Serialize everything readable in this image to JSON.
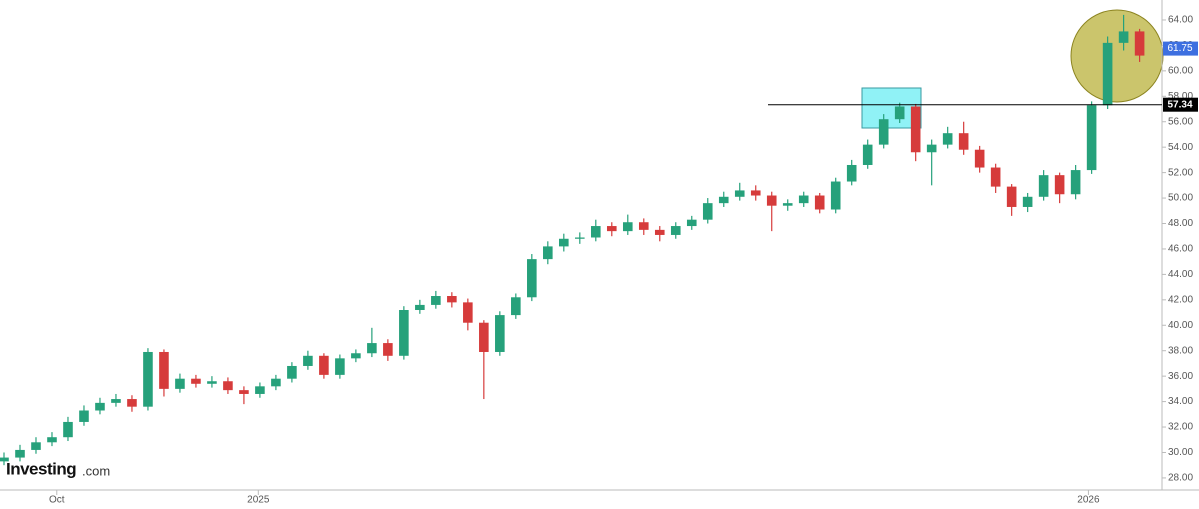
{
  "chart_data": {
    "type": "candlestick",
    "logo": {
      "brand": "Investing",
      "suffix": ".com"
    },
    "x": [
      0,
      1,
      2,
      3,
      4,
      5,
      6,
      7,
      8,
      9,
      10,
      11,
      12,
      13,
      14,
      15,
      16,
      17,
      18,
      19,
      20,
      21,
      22,
      23,
      24,
      25,
      26,
      27,
      28,
      29,
      30,
      31,
      32,
      33,
      34,
      35,
      36,
      37,
      38,
      39,
      40,
      41,
      42,
      43,
      44,
      45,
      46,
      47,
      48,
      49,
      50,
      51,
      52,
      53,
      54,
      55,
      56,
      57,
      58,
      59,
      60,
      61,
      62,
      63,
      64,
      65,
      66,
      67,
      68,
      69,
      70,
      71
    ],
    "open": [
      29.3,
      29.6,
      30.2,
      30.8,
      31.2,
      32.4,
      33.3,
      33.9,
      34.2,
      33.6,
      37.9,
      35.0,
      35.8,
      35.4,
      35.6,
      34.9,
      34.6,
      35.2,
      35.8,
      36.8,
      37.6,
      36.1,
      37.4,
      37.8,
      38.6,
      37.6,
      41.2,
      41.6,
      42.3,
      41.8,
      40.2,
      37.9,
      40.8,
      42.2,
      45.2,
      46.2,
      46.8,
      46.9,
      47.8,
      47.4,
      48.1,
      47.5,
      47.1,
      47.8,
      48.3,
      49.6,
      50.1,
      50.6,
      50.2,
      49.4,
      49.6,
      50.2,
      49.1,
      51.3,
      52.6,
      54.2,
      56.2,
      57.2,
      53.6,
      54.2,
      55.1,
      53.8,
      52.4,
      50.9,
      49.3,
      50.1,
      51.8,
      50.3,
      52.2,
      57.3,
      62.2,
      63.1
    ],
    "high": [
      30.0,
      30.6,
      31.2,
      31.6,
      32.8,
      33.7,
      34.3,
      34.6,
      34.5,
      38.2,
      38.1,
      36.2,
      36.1,
      36.0,
      35.9,
      35.2,
      35.5,
      36.1,
      37.1,
      38.0,
      37.8,
      37.7,
      38.1,
      39.8,
      38.9,
      41.5,
      42.0,
      42.7,
      42.6,
      42.1,
      40.4,
      41.1,
      42.5,
      45.6,
      46.6,
      47.2,
      47.3,
      48.3,
      48.1,
      48.7,
      48.4,
      47.8,
      48.1,
      48.6,
      50.0,
      50.5,
      51.2,
      51.0,
      50.5,
      49.9,
      50.5,
      50.4,
      51.6,
      53.0,
      54.6,
      56.6,
      57.5,
      57.4,
      54.6,
      55.6,
      56.0,
      54.1,
      52.7,
      51.1,
      50.4,
      52.2,
      52.0,
      52.6,
      57.6,
      62.7,
      64.4,
      63.3
    ],
    "low": [
      29.0,
      29.3,
      29.9,
      30.5,
      30.9,
      32.1,
      33.0,
      33.6,
      33.2,
      33.3,
      34.4,
      34.7,
      35.1,
      35.1,
      34.6,
      33.8,
      34.3,
      34.9,
      35.5,
      36.5,
      35.8,
      35.8,
      37.1,
      37.5,
      37.2,
      37.3,
      40.9,
      41.3,
      41.4,
      39.6,
      34.2,
      37.6,
      40.5,
      41.9,
      44.8,
      45.8,
      46.4,
      46.6,
      47.0,
      47.1,
      47.1,
      46.6,
      46.8,
      47.5,
      48.0,
      49.3,
      49.8,
      49.8,
      47.4,
      49.0,
      49.3,
      48.8,
      48.8,
      51.0,
      52.3,
      53.9,
      55.9,
      52.9,
      51.0,
      53.9,
      53.4,
      52.0,
      50.4,
      48.6,
      48.9,
      49.8,
      49.6,
      49.9,
      51.9,
      57.0,
      61.6,
      60.7
    ],
    "close": [
      29.6,
      30.2,
      30.8,
      31.2,
      32.4,
      33.3,
      33.9,
      34.2,
      33.6,
      37.9,
      35.0,
      35.8,
      35.4,
      35.6,
      34.9,
      34.6,
      35.2,
      35.8,
      36.8,
      37.6,
      36.1,
      37.4,
      37.8,
      38.6,
      37.6,
      41.2,
      41.6,
      42.3,
      41.8,
      40.2,
      37.9,
      40.8,
      42.2,
      45.2,
      46.2,
      46.8,
      46.9,
      47.8,
      47.4,
      48.1,
      47.5,
      47.1,
      47.8,
      48.3,
      49.6,
      50.1,
      50.6,
      50.2,
      49.4,
      49.6,
      50.2,
      49.1,
      51.3,
      52.6,
      54.2,
      56.2,
      57.2,
      53.6,
      54.2,
      55.1,
      53.8,
      52.4,
      50.9,
      49.3,
      50.1,
      51.8,
      50.3,
      52.2,
      57.3,
      62.2,
      63.1,
      61.2
    ],
    "up_color": "#26a17b",
    "down_color": "#d63b3b",
    "xlim": [
      -0.25,
      72.4
    ],
    "xticks": [
      {
        "value": 3.3,
        "label": "Oct"
      },
      {
        "value": 15.9,
        "label": "2025"
      },
      {
        "value": 67.8,
        "label": "2026"
      }
    ],
    "ylim": [
      27.05,
      65.57
    ],
    "yticks": [
      {
        "value": 28,
        "label": "28.00"
      },
      {
        "value": 30,
        "label": "30.00"
      },
      {
        "value": 32,
        "label": "32.00"
      },
      {
        "value": 34,
        "label": "34.00"
      },
      {
        "value": 36,
        "label": "36.00"
      },
      {
        "value": 38,
        "label": "38.00"
      },
      {
        "value": 40,
        "label": "40.00"
      },
      {
        "value": 42,
        "label": "42.00"
      },
      {
        "value": 44,
        "label": "44.00"
      },
      {
        "value": 46,
        "label": "46.00"
      },
      {
        "value": 48,
        "label": "48.00"
      },
      {
        "value": 50,
        "label": "50.00"
      },
      {
        "value": 52,
        "label": "52.00"
      },
      {
        "value": 54,
        "label": "54.00"
      },
      {
        "value": 56,
        "label": "56.00"
      },
      {
        "value": 58,
        "label": "58.00"
      },
      {
        "value": 60,
        "label": "60.00"
      },
      {
        "value": 62,
        "label": "62.00"
      },
      {
        "value": 64,
        "label": "64.00"
      }
    ],
    "price_line": 57.34,
    "price_line_color": "#000000",
    "last_price": 61.75,
    "last_price_color": "#3d6fe0",
    "grid": false
  }
}
